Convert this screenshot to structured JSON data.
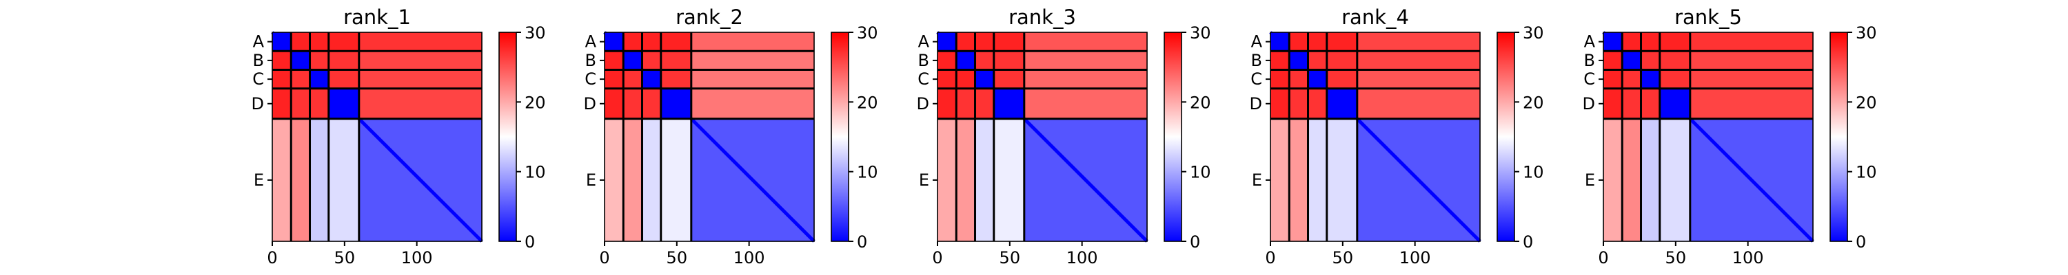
{
  "chart_data": [
    {
      "type": "heatmap",
      "title": "rank_1",
      "chains": [
        {
          "label": "A",
          "start": 0,
          "end": 13
        },
        {
          "label": "B",
          "start": 13,
          "end": 26
        },
        {
          "label": "C",
          "start": 26,
          "end": 39
        },
        {
          "label": "D",
          "start": 39,
          "end": 60
        },
        {
          "label": "E",
          "start": 60,
          "end": 145
        }
      ],
      "block_boundaries": [
        13,
        26,
        39,
        60
      ],
      "xlim": [
        0,
        145
      ],
      "xticks": [
        0,
        50,
        100
      ],
      "colorbar": {
        "min": 0,
        "max": 30,
        "ticks": [
          0,
          10,
          20,
          30
        ],
        "colormap": "bwr"
      },
      "matrix": [
        [
          0,
          28,
          28,
          28,
          27
        ],
        [
          28,
          0,
          27,
          27,
          26
        ],
        [
          28,
          27,
          0,
          27,
          26
        ],
        [
          28,
          27,
          27,
          0,
          26
        ],
        [
          20,
          22,
          12,
          13,
          5
        ]
      ]
    },
    {
      "type": "heatmap",
      "title": "rank_2",
      "chains": [
        {
          "label": "A",
          "start": 0,
          "end": 13
        },
        {
          "label": "B",
          "start": 13,
          "end": 26
        },
        {
          "label": "C",
          "start": 26,
          "end": 39
        },
        {
          "label": "D",
          "start": 39,
          "end": 60
        },
        {
          "label": "E",
          "start": 60,
          "end": 145
        }
      ],
      "block_boundaries": [
        13,
        26,
        39,
        60
      ],
      "xlim": [
        0,
        145
      ],
      "xticks": [
        0,
        50,
        100
      ],
      "colorbar": {
        "min": 0,
        "max": 30,
        "ticks": [
          0,
          10,
          20,
          30
        ],
        "colormap": "bwr"
      },
      "matrix": [
        [
          0,
          28,
          28,
          28,
          24
        ],
        [
          28,
          0,
          27,
          27,
          23
        ],
        [
          28,
          27,
          0,
          27,
          23
        ],
        [
          28,
          27,
          27,
          0,
          23
        ],
        [
          19,
          21,
          13,
          14,
          5
        ]
      ]
    },
    {
      "type": "heatmap",
      "title": "rank_3",
      "chains": [
        {
          "label": "A",
          "start": 0,
          "end": 13
        },
        {
          "label": "B",
          "start": 13,
          "end": 26
        },
        {
          "label": "C",
          "start": 26,
          "end": 39
        },
        {
          "label": "D",
          "start": 39,
          "end": 60
        },
        {
          "label": "E",
          "start": 60,
          "end": 145
        }
      ],
      "block_boundaries": [
        13,
        26,
        39,
        60
      ],
      "xlim": [
        0,
        145
      ],
      "xticks": [
        0,
        50,
        100
      ],
      "colorbar": {
        "min": 0,
        "max": 30,
        "ticks": [
          0,
          10,
          20,
          30
        ],
        "colormap": "bwr"
      },
      "matrix": [
        [
          0,
          28,
          28,
          28,
          25
        ],
        [
          28,
          0,
          27,
          27,
          24
        ],
        [
          28,
          28,
          0,
          27,
          24
        ],
        [
          28,
          27,
          27,
          0,
          24
        ],
        [
          20,
          21,
          13,
          14,
          5
        ]
      ]
    },
    {
      "type": "heatmap",
      "title": "rank_4",
      "chains": [
        {
          "label": "A",
          "start": 0,
          "end": 13
        },
        {
          "label": "B",
          "start": 13,
          "end": 26
        },
        {
          "label": "C",
          "start": 26,
          "end": 39
        },
        {
          "label": "D",
          "start": 39,
          "end": 60
        },
        {
          "label": "E",
          "start": 60,
          "end": 145
        }
      ],
      "block_boundaries": [
        13,
        26,
        39,
        60
      ],
      "xlim": [
        0,
        145
      ],
      "xticks": [
        0,
        50,
        100
      ],
      "colorbar": {
        "min": 0,
        "max": 30,
        "ticks": [
          0,
          10,
          20,
          30
        ],
        "colormap": "bwr"
      },
      "matrix": [
        [
          0,
          28,
          28,
          28,
          26
        ],
        [
          28,
          0,
          27,
          27,
          26
        ],
        [
          28,
          27,
          0,
          27,
          25
        ],
        [
          28,
          27,
          27,
          0,
          25
        ],
        [
          20,
          21,
          13,
          13,
          5
        ]
      ]
    },
    {
      "type": "heatmap",
      "title": "rank_5",
      "chains": [
        {
          "label": "A",
          "start": 0,
          "end": 13
        },
        {
          "label": "B",
          "start": 13,
          "end": 26
        },
        {
          "label": "C",
          "start": 26,
          "end": 39
        },
        {
          "label": "D",
          "start": 39,
          "end": 60
        },
        {
          "label": "E",
          "start": 60,
          "end": 145
        }
      ],
      "block_boundaries": [
        13,
        26,
        39,
        60
      ],
      "xlim": [
        0,
        145
      ],
      "xticks": [
        0,
        50,
        100
      ],
      "colorbar": {
        "min": 0,
        "max": 30,
        "ticks": [
          0,
          10,
          20,
          30
        ],
        "colormap": "bwr"
      },
      "matrix": [
        [
          0,
          28,
          28,
          28,
          27
        ],
        [
          28,
          0,
          27,
          27,
          26
        ],
        [
          28,
          27,
          0,
          27,
          26
        ],
        [
          28,
          27,
          27,
          0,
          26
        ],
        [
          20,
          22,
          12,
          13,
          5
        ]
      ]
    }
  ]
}
